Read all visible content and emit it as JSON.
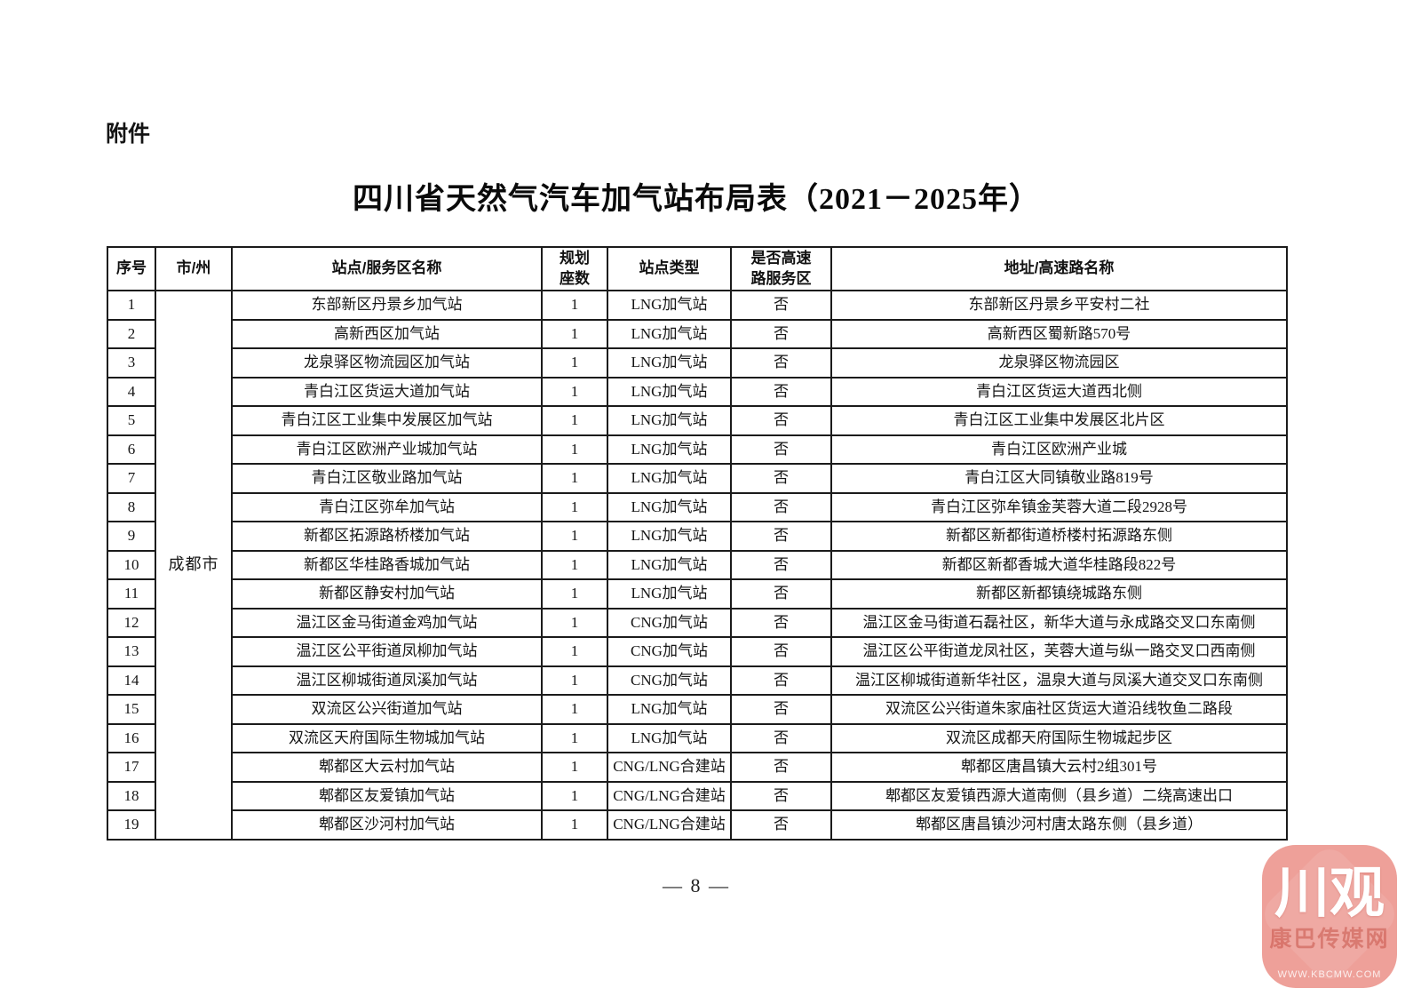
{
  "page": {
    "attachment_label": "附件",
    "title": "四川省天然气汽车加气站布局表（2021－2025年）",
    "page_number": "— 8 —"
  },
  "table": {
    "headers": [
      "序号",
      "市/州",
      "站点/服务区名称",
      "规划座数",
      "站点类型",
      "是否高速路服务区",
      "地址/高速路名称"
    ],
    "city_group": "成都市",
    "rows": [
      {
        "no": "1",
        "name": "东部新区丹景乡加气站",
        "count": "1",
        "type": "LNG加气站",
        "highway_service": "否",
        "address": "东部新区丹景乡平安村二社"
      },
      {
        "no": "2",
        "name": "高新西区加气站",
        "count": "1",
        "type": "LNG加气站",
        "highway_service": "否",
        "address": "高新西区蜀新路570号"
      },
      {
        "no": "3",
        "name": "龙泉驿区物流园区加气站",
        "count": "1",
        "type": "LNG加气站",
        "highway_service": "否",
        "address": "龙泉驿区物流园区"
      },
      {
        "no": "4",
        "name": "青白江区货运大道加气站",
        "count": "1",
        "type": "LNG加气站",
        "highway_service": "否",
        "address": "青白江区货运大道西北侧"
      },
      {
        "no": "5",
        "name": "青白江区工业集中发展区加气站",
        "count": "1",
        "type": "LNG加气站",
        "highway_service": "否",
        "address": "青白江区工业集中发展区北片区"
      },
      {
        "no": "6",
        "name": "青白江区欧洲产业城加气站",
        "count": "1",
        "type": "LNG加气站",
        "highway_service": "否",
        "address": "青白江区欧洲产业城"
      },
      {
        "no": "7",
        "name": "青白江区敬业路加气站",
        "count": "1",
        "type": "LNG加气站",
        "highway_service": "否",
        "address": "青白江区大同镇敬业路819号"
      },
      {
        "no": "8",
        "name": "青白江区弥牟加气站",
        "count": "1",
        "type": "LNG加气站",
        "highway_service": "否",
        "address": "青白江区弥牟镇金芙蓉大道二段2928号"
      },
      {
        "no": "9",
        "name": "新都区拓源路桥楼加气站",
        "count": "1",
        "type": "LNG加气站",
        "highway_service": "否",
        "address": "新都区新都街道桥楼村拓源路东侧"
      },
      {
        "no": "10",
        "name": "新都区华桂路香城加气站",
        "count": "1",
        "type": "LNG加气站",
        "highway_service": "否",
        "address": "新都区新都香城大道华桂路段822号"
      },
      {
        "no": "11",
        "name": "新都区静安村加气站",
        "count": "1",
        "type": "LNG加气站",
        "highway_service": "否",
        "address": "新都区新都镇绕城路东侧"
      },
      {
        "no": "12",
        "name": "温江区金马街道金鸡加气站",
        "count": "1",
        "type": "CNG加气站",
        "highway_service": "否",
        "address": "温江区金马街道石磊社区，新华大道与永成路交叉口东南侧"
      },
      {
        "no": "13",
        "name": "温江区公平街道凤柳加气站",
        "count": "1",
        "type": "CNG加气站",
        "highway_service": "否",
        "address": "温江区公平街道龙凤社区，芙蓉大道与纵一路交叉口西南侧"
      },
      {
        "no": "14",
        "name": "温江区柳城街道凤溪加气站",
        "count": "1",
        "type": "CNG加气站",
        "highway_service": "否",
        "address": "温江区柳城街道新华社区，温泉大道与凤溪大道交叉口东南侧"
      },
      {
        "no": "15",
        "name": "双流区公兴街道加气站",
        "count": "1",
        "type": "LNG加气站",
        "highway_service": "否",
        "address": "双流区公兴街道朱家庙社区货运大道沿线牧鱼二路段"
      },
      {
        "no": "16",
        "name": "双流区天府国际生物城加气站",
        "count": "1",
        "type": "LNG加气站",
        "highway_service": "否",
        "address": "双流区成都天府国际生物城起步区"
      },
      {
        "no": "17",
        "name": "郫都区大云村加气站",
        "count": "1",
        "type": "CNG/LNG合建站",
        "highway_service": "否",
        "address": "郫都区唐昌镇大云村2组301号"
      },
      {
        "no": "18",
        "name": "郫都区友爱镇加气站",
        "count": "1",
        "type": "CNG/LNG合建站",
        "highway_service": "否",
        "address": "郫都区友爱镇西源大道南侧（县乡道）二绕高速出口"
      },
      {
        "no": "19",
        "name": "郫都区沙河村加气站",
        "count": "1",
        "type": "CNG/LNG合建站",
        "highway_service": "否",
        "address": "郫都区唐昌镇沙河村唐太路东侧（县乡道）"
      }
    ]
  },
  "watermark": {
    "logo_text": "川观",
    "sub_text": "康巴传媒网",
    "url_text": "WWW.KBCMW.COM",
    "badge_color": "#eea099"
  }
}
